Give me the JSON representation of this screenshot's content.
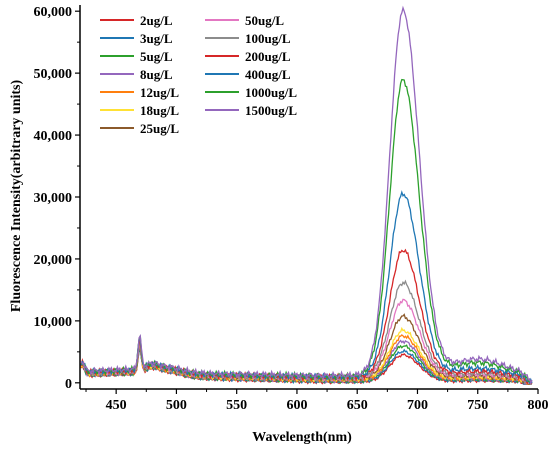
{
  "chart_data": {
    "type": "line",
    "title": "",
    "xlabel": "Wavelength(nm)",
    "ylabel": "Fluorescence Intensity(arbitrary units)",
    "xlim": [
      420,
      800
    ],
    "ylim": [
      -1000,
      61000
    ],
    "xticks": [
      450,
      500,
      550,
      600,
      650,
      700,
      750,
      800
    ],
    "xtick_labels": [
      "450",
      "500",
      "550",
      "600",
      "650",
      "700",
      "750",
      "800"
    ],
    "yticks": [
      0,
      10000,
      20000,
      30000,
      40000,
      50000,
      60000
    ],
    "ytick_labels": [
      "0",
      "10,000",
      "20,000",
      "30,000",
      "40,000",
      "50,000",
      "60,000"
    ],
    "grid": false,
    "legend_position": "top-left",
    "series": [
      {
        "name": "2ug/L",
        "color": "#d62728",
        "peak_x": 688,
        "peak_y": 4700
      },
      {
        "name": "3ug/L",
        "color": "#1f77b4",
        "peak_x": 688,
        "peak_y": 5200
      },
      {
        "name": "5ug/L",
        "color": "#2ca02c",
        "peak_x": 688,
        "peak_y": 6000
      },
      {
        "name": "8ug/L",
        "color": "#9467bd",
        "peak_x": 688,
        "peak_y": 6700
      },
      {
        "name": "12ug/L",
        "color": "#ff7f0e",
        "peak_x": 688,
        "peak_y": 7500
      },
      {
        "name": "18ug/L",
        "color": "#ffe135",
        "peak_x": 688,
        "peak_y": 8300
      },
      {
        "name": "25ug/L",
        "color": "#8c5a2b",
        "peak_x": 688,
        "peak_y": 10500
      },
      {
        "name": "50ug/L",
        "color": "#e377c2",
        "peak_x": 688,
        "peak_y": 13000
      },
      {
        "name": "100ug/L",
        "color": "#8c8c8c",
        "peak_x": 688,
        "peak_y": 15800
      },
      {
        "name": "200ug/L",
        "color": "#d62728",
        "peak_x": 688,
        "peak_y": 21000
      },
      {
        "name": "400ug/L",
        "color": "#1f77b4",
        "peak_x": 688,
        "peak_y": 30000
      },
      {
        "name": "1000ug/L",
        "color": "#2ca02c",
        "peak_x": 688,
        "peak_y": 48300
      },
      {
        "name": "1500ug/L",
        "color": "#9467bd",
        "peak_x": 688,
        "peak_y": 59400
      }
    ]
  }
}
